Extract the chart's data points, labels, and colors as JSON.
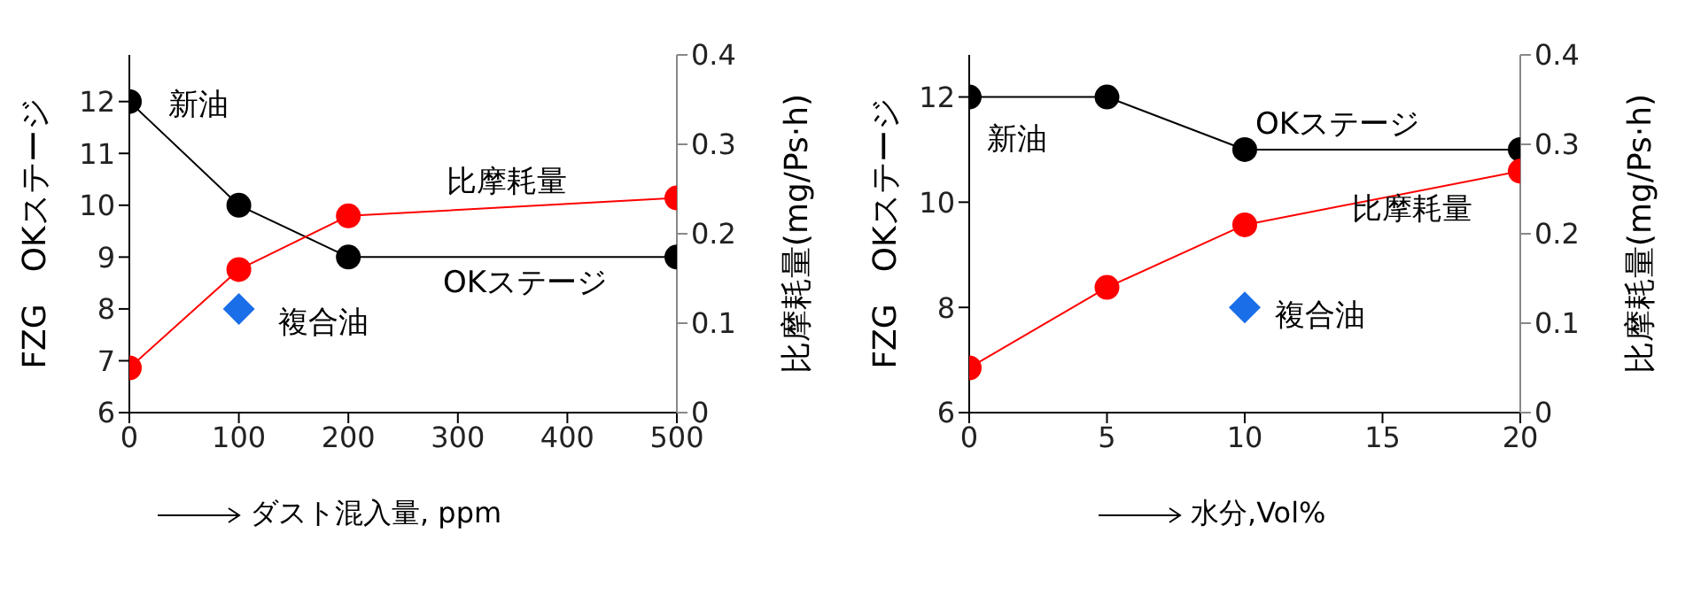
{
  "chart_data": [
    {
      "type": "line",
      "xlabel": "ダスト混入量, ppm",
      "ylabel": "FZG　OKステージ",
      "y2label": "比摩耗量(mg/Ps·h)",
      "xlim": [
        0,
        500
      ],
      "xticks": [
        0,
        100,
        200,
        300,
        400,
        500
      ],
      "ylim": [
        6,
        12.9
      ],
      "yticks": [
        6,
        7,
        8,
        9,
        10,
        11,
        12
      ],
      "y2lim": [
        0,
        0.4
      ],
      "y2ticks": [
        0,
        0.1,
        0.2,
        0.3,
        0.4
      ],
      "marker": "circle",
      "grid": false,
      "legend": false,
      "series": [
        {
          "name": "OKステージ",
          "color": "#000000",
          "x": [
            0,
            100,
            200,
            500
          ],
          "values": [
            12,
            10,
            9,
            9
          ]
        },
        {
          "name": "比摩耗量",
          "color": "#ff0000",
          "axis": "y2",
          "x": [
            0,
            100,
            200,
            500
          ],
          "values": [
            0.05,
            0.16,
            0.22,
            0.24
          ]
        },
        {
          "name": "複合油",
          "type": "scatter",
          "marker": "diamond",
          "color": "#1a6ee8",
          "x": [
            100
          ],
          "values": [
            8
          ]
        }
      ],
      "annotations": [
        {
          "text": "新油",
          "x": 0,
          "y": 12
        }
      ]
    },
    {
      "type": "line",
      "xlabel": "水分,Vol%",
      "ylabel": "FZG　OKステージ",
      "y2label": "比摩耗量(mg/Ps·h)",
      "xlim": [
        0,
        20
      ],
      "xticks": [
        0,
        5,
        10,
        15,
        20
      ],
      "ylim": [
        6,
        12.8
      ],
      "yticks": [
        6,
        8,
        10,
        12
      ],
      "y2lim": [
        0,
        0.4
      ],
      "y2ticks": [
        0,
        0.1,
        0.2,
        0.3,
        0.4
      ],
      "marker": "circle",
      "grid": false,
      "legend": false,
      "series": [
        {
          "name": "OKステージ",
          "color": "#000000",
          "x": [
            0,
            5,
            10,
            20
          ],
          "values": [
            12,
            12,
            11,
            11
          ]
        },
        {
          "name": "比摩耗量",
          "color": "#ff0000",
          "axis": "y2",
          "x": [
            0,
            5,
            10,
            20
          ],
          "values": [
            0.05,
            0.14,
            0.21,
            0.27
          ]
        },
        {
          "name": "複合油",
          "type": "scatter",
          "marker": "diamond",
          "color": "#1a6ee8",
          "x": [
            10
          ],
          "values": [
            8
          ]
        }
      ],
      "annotations": [
        {
          "text": "新油",
          "x": 0,
          "y": 12
        }
      ]
    }
  ]
}
